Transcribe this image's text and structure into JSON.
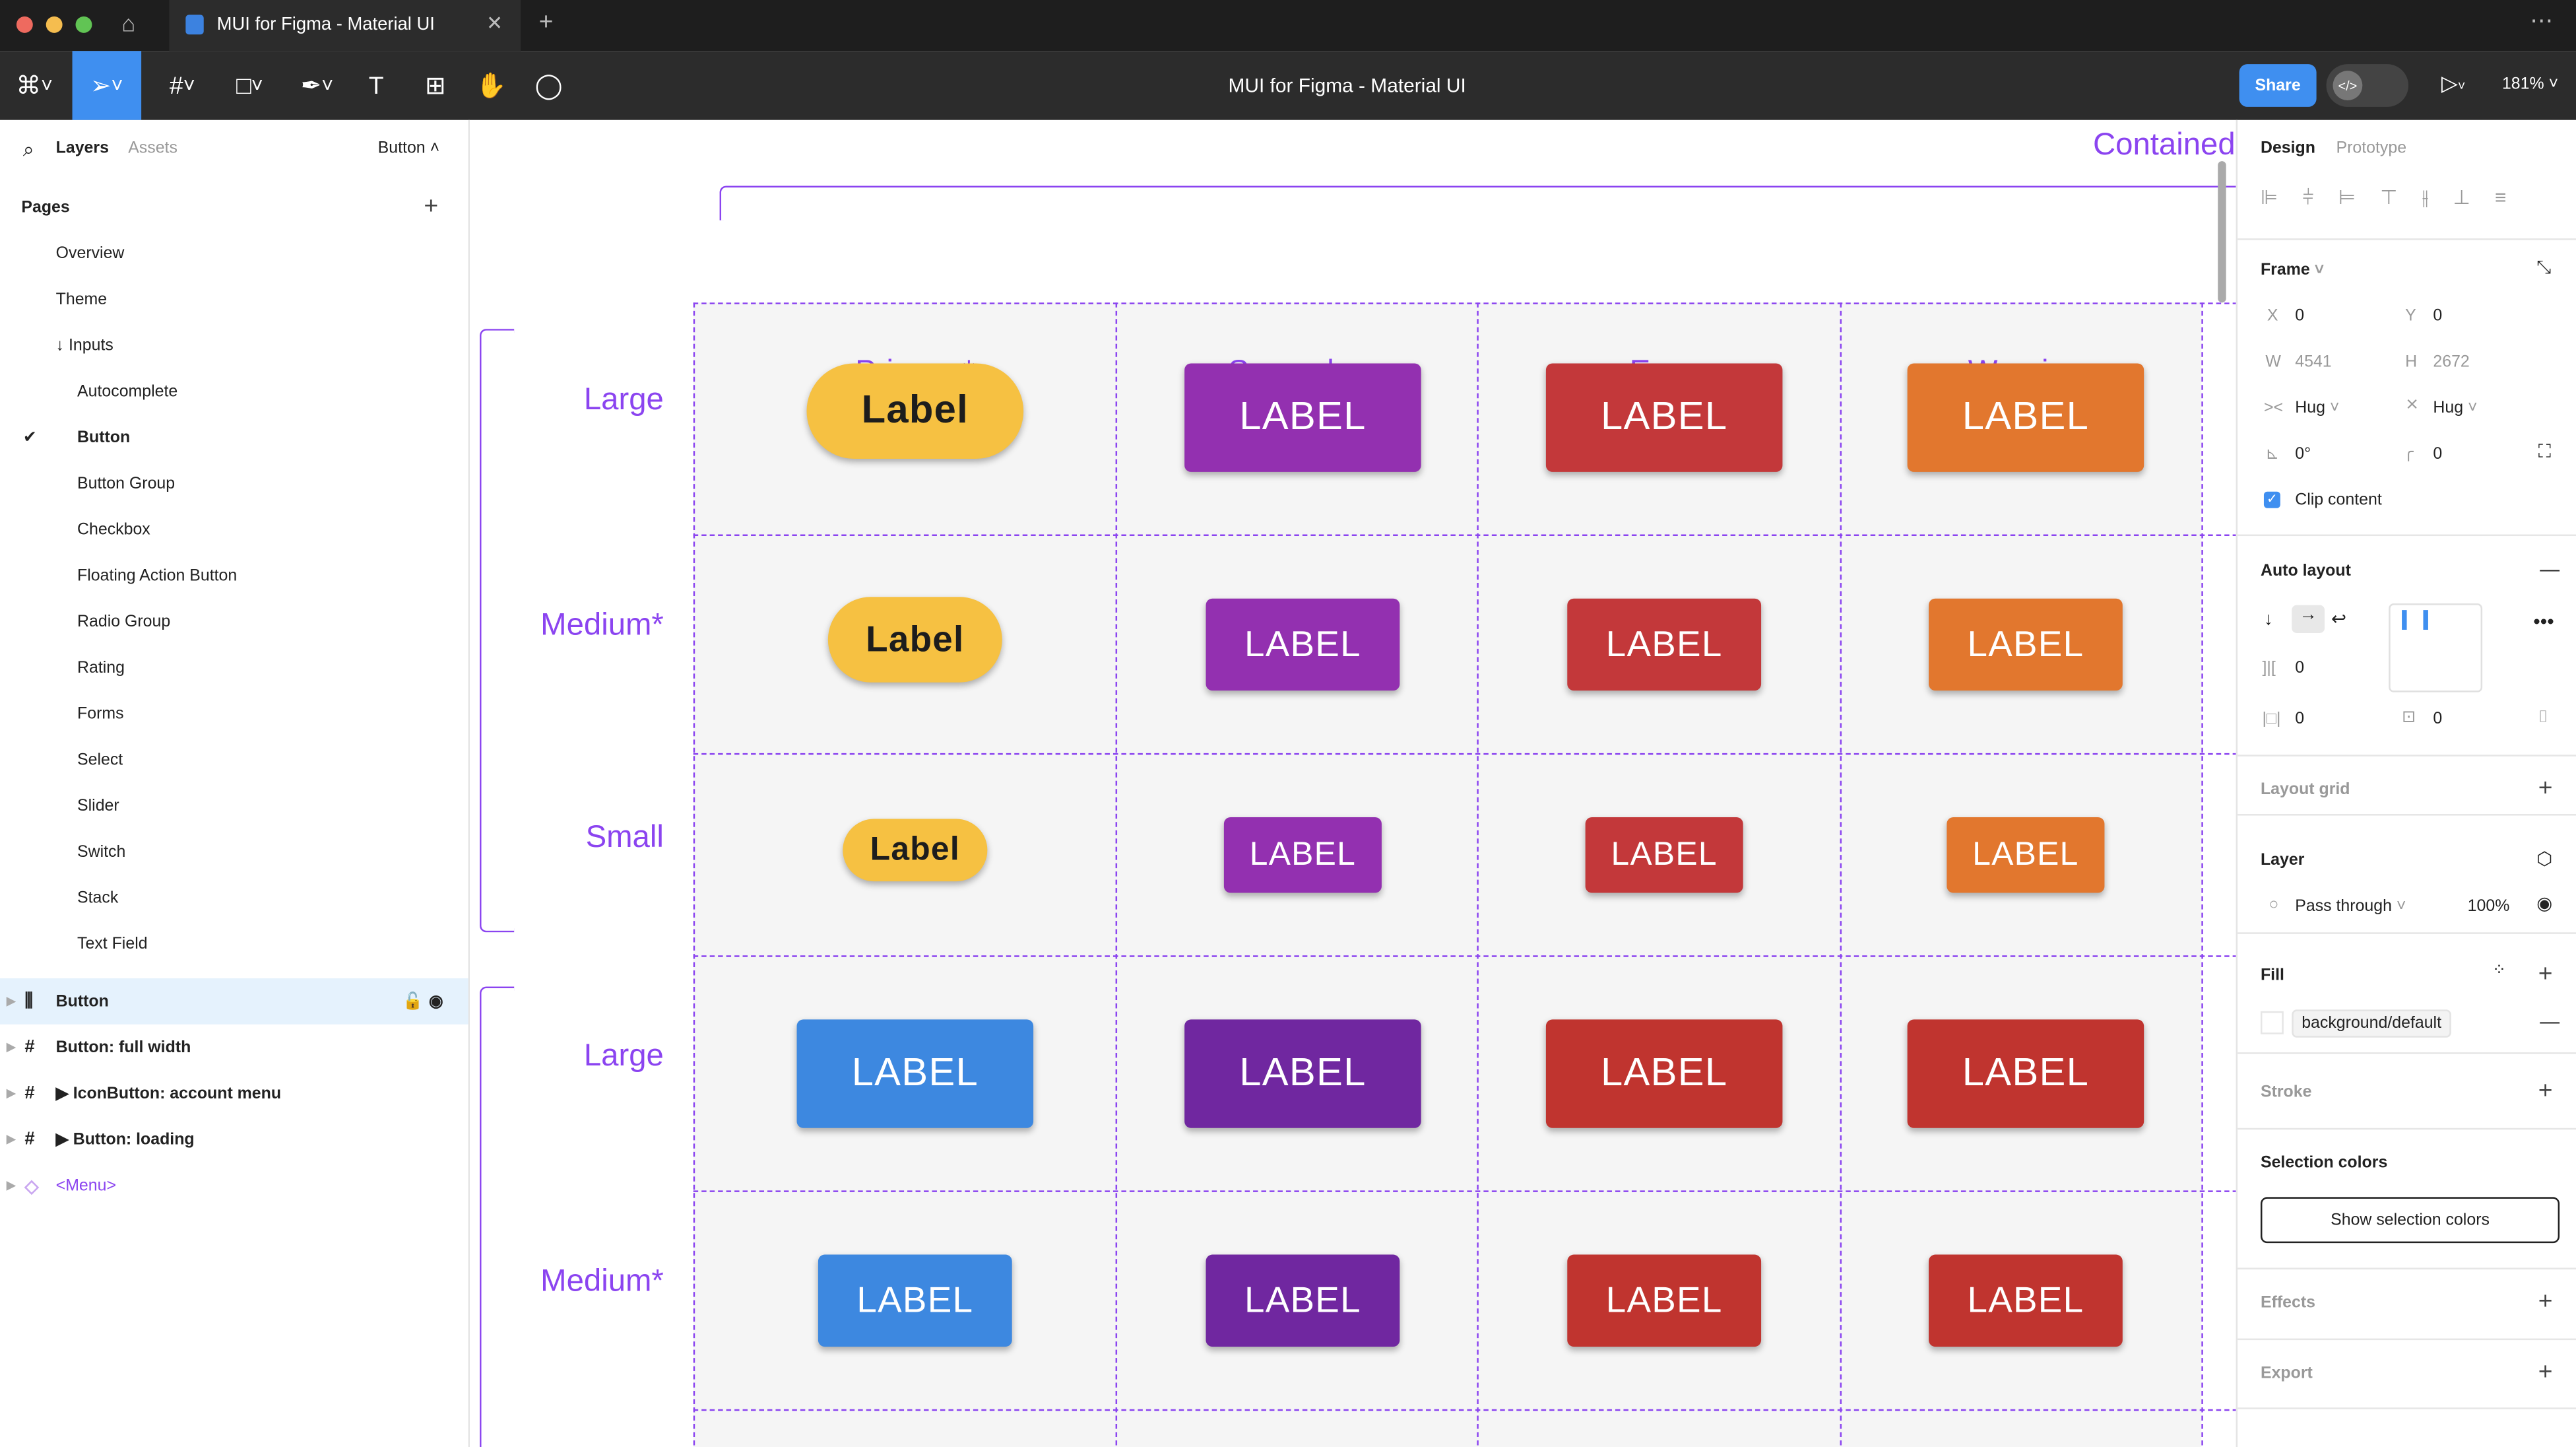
{
  "window": {
    "tab_title": "MUI for Figma - Material UI",
    "doc_title": "MUI for Figma - Material UI",
    "share": "Share",
    "zoom": "181%"
  },
  "left": {
    "tabs": {
      "layers": "Layers",
      "assets": "Assets"
    },
    "current_page": "Button",
    "pages_title": "Pages",
    "pages": [
      "Overview",
      "Theme",
      "↓ Inputs",
      "Autocomplete",
      "Button",
      "Button Group",
      "Checkbox",
      "Floating Action Button",
      "Radio Group",
      "Rating",
      "Forms",
      "Select",
      "Slider",
      "Switch",
      "Stack",
      "Text Field"
    ],
    "layers": [
      {
        "label": "Button",
        "icon": "auto-layout-icon"
      },
      {
        "label": "Button: full width",
        "icon": "frame-icon"
      },
      {
        "label": "▶ IconButton: account menu",
        "icon": "frame-icon"
      },
      {
        "label": "▶ Button: loading",
        "icon": "frame-icon"
      },
      {
        "label": "<Menu>",
        "icon": "component-icon"
      }
    ]
  },
  "canvas": {
    "container_title": "Contained",
    "columns": [
      "Primary*",
      "Secondary",
      "Error",
      "Warning"
    ],
    "rows": [
      {
        "size": "Large",
        "buttons": [
          {
            "label": "Label",
            "color": "#f6c142",
            "style": "pill"
          },
          {
            "label": "LABEL",
            "color": "#9330b0"
          },
          {
            "label": "LABEL",
            "color": "#c3383a"
          },
          {
            "label": "LABEL",
            "color": "#e2772e"
          }
        ]
      },
      {
        "size": "Medium*",
        "buttons": [
          {
            "label": "Label",
            "color": "#f6c142",
            "style": "pill"
          },
          {
            "label": "LABEL",
            "color": "#9330b0"
          },
          {
            "label": "LABEL",
            "color": "#c3383a"
          },
          {
            "label": "LABEL",
            "color": "#e2772e"
          }
        ]
      },
      {
        "size": "Small",
        "buttons": [
          {
            "label": "Label",
            "color": "#f6c142",
            "style": "pill"
          },
          {
            "label": "LABEL",
            "color": "#9330b0"
          },
          {
            "label": "LABEL",
            "color": "#c3383a"
          },
          {
            "label": "LABEL",
            "color": "#e2772e"
          }
        ]
      },
      {
        "size": "Large",
        "buttons": [
          {
            "label": "LABEL",
            "color": "#3d88e0"
          },
          {
            "label": "LABEL",
            "color": "#7027a0"
          },
          {
            "label": "LABEL",
            "color": "#c0342f"
          },
          {
            "label": "LABEL",
            "color": "#c0342f"
          }
        ]
      },
      {
        "size": "Medium*",
        "buttons": [
          {
            "label": "LABEL",
            "color": "#3d88e0"
          },
          {
            "label": "LABEL",
            "color": "#7027a0"
          },
          {
            "label": "LABEL",
            "color": "#c0342f"
          },
          {
            "label": "LABEL",
            "color": "#c0342f"
          }
        ]
      }
    ]
  },
  "right": {
    "tabs": {
      "design": "Design",
      "prototype": "Prototype"
    },
    "frame": {
      "title": "Frame",
      "x_label": "X",
      "x": "0",
      "y_label": "Y",
      "y": "0",
      "w_label": "W",
      "w": "4541",
      "h_label": "H",
      "h": "2672",
      "width_mode": "Hug",
      "height_mode": "Hug",
      "rotation": "0°",
      "radius": "0",
      "clip_content": "Clip content"
    },
    "auto_layout": {
      "title": "Auto layout",
      "gap": "0",
      "padding_h": "0",
      "padding_v": "0"
    },
    "layout_grid": "Layout grid",
    "layer": {
      "title": "Layer",
      "blend": "Pass through",
      "opacity": "100%"
    },
    "fill": {
      "title": "Fill",
      "style": "background/default"
    },
    "stroke": "Stroke",
    "selection_colors": {
      "title": "Selection colors",
      "button": "Show selection colors"
    },
    "effects": "Effects",
    "export": "Export"
  }
}
